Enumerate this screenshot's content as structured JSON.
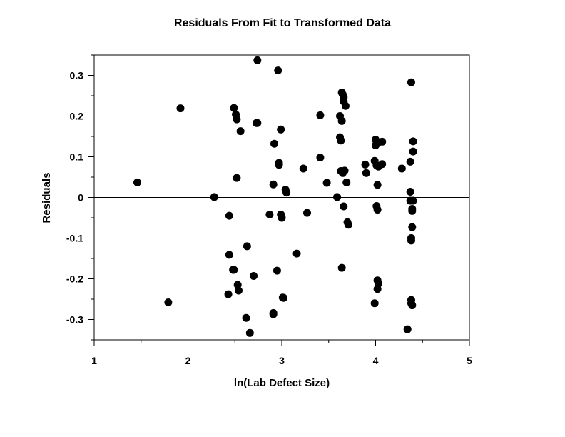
{
  "chart_data": {
    "type": "scatter",
    "title": "Residuals From Fit to Transformed Data",
    "xlabel": "ln(Lab Defect Size)",
    "ylabel": "Residuals",
    "xlim": [
      1,
      5
    ],
    "ylim": [
      -0.35,
      0.35
    ],
    "xticks": [
      1,
      2,
      3,
      4,
      5
    ],
    "xtick_labels": [
      "1",
      "2",
      "3",
      "4",
      "5"
    ],
    "yticks": [
      -0.3,
      -0.2,
      -0.1,
      0,
      0.1,
      0.2,
      0.3
    ],
    "ytick_labels": [
      "-0.3",
      "-0.2",
      "-0.1",
      "0",
      "0.1",
      "0.2",
      "0.3"
    ],
    "reference_line_y": 0,
    "grid": false,
    "marker_color": "#000000",
    "series": [
      {
        "points": [
          [
            1.46,
            0.037
          ],
          [
            1.79,
            -0.258
          ],
          [
            1.92,
            0.219
          ],
          [
            2.28,
            0.001
          ],
          [
            2.43,
            -0.238
          ],
          [
            2.44,
            -0.045
          ],
          [
            2.44,
            -0.141
          ],
          [
            2.48,
            -0.178
          ],
          [
            2.49,
            -0.178
          ],
          [
            2.49,
            0.22
          ],
          [
            2.51,
            0.204
          ],
          [
            2.52,
            0.192
          ],
          [
            2.52,
            0.048
          ],
          [
            2.53,
            -0.215
          ],
          [
            2.54,
            -0.229
          ],
          [
            2.56,
            0.163
          ],
          [
            2.62,
            -0.296
          ],
          [
            2.63,
            -0.12
          ],
          [
            2.66,
            -0.333
          ],
          [
            2.7,
            -0.193
          ],
          [
            2.73,
            0.183
          ],
          [
            2.74,
            0.183
          ],
          [
            2.74,
            0.337
          ],
          [
            2.87,
            -0.042
          ],
          [
            2.91,
            -0.284
          ],
          [
            2.91,
            -0.287
          ],
          [
            2.91,
            0.032
          ],
          [
            2.92,
            0.132
          ],
          [
            2.95,
            -0.18
          ],
          [
            2.96,
            0.312
          ],
          [
            2.97,
            0.085
          ],
          [
            2.97,
            0.08
          ],
          [
            2.99,
            -0.042
          ],
          [
            2.99,
            0.167
          ],
          [
            3.0,
            -0.05
          ],
          [
            3.01,
            -0.246
          ],
          [
            3.02,
            -0.247
          ],
          [
            3.04,
            0.019
          ],
          [
            3.05,
            0.012
          ],
          [
            3.16,
            -0.138
          ],
          [
            3.23,
            0.071
          ],
          [
            3.27,
            -0.038
          ],
          [
            3.41,
            0.202
          ],
          [
            3.41,
            0.098
          ],
          [
            3.48,
            0.036
          ],
          [
            3.59,
            0.001
          ],
          [
            3.62,
            0.2
          ],
          [
            3.62,
            0.148
          ],
          [
            3.63,
            0.065
          ],
          [
            3.63,
            0.14
          ],
          [
            3.64,
            0.188
          ],
          [
            3.64,
            0.258
          ],
          [
            3.64,
            -0.173
          ],
          [
            3.65,
            0.253
          ],
          [
            3.65,
            0.06
          ],
          [
            3.66,
            0.246
          ],
          [
            3.66,
            0.236
          ],
          [
            3.66,
            -0.022
          ],
          [
            3.67,
            0.066
          ],
          [
            3.68,
            0.225
          ],
          [
            3.69,
            0.037
          ],
          [
            3.7,
            -0.061
          ],
          [
            3.71,
            -0.067
          ],
          [
            3.89,
            0.081
          ],
          [
            3.9,
            0.06
          ],
          [
            3.99,
            0.09
          ],
          [
            3.99,
            -0.26
          ],
          [
            4.0,
            0.142
          ],
          [
            4.0,
            0.128
          ],
          [
            4.01,
            0.079
          ],
          [
            4.01,
            -0.021
          ],
          [
            4.02,
            0.031
          ],
          [
            4.02,
            0.133
          ],
          [
            4.02,
            -0.03
          ],
          [
            4.02,
            -0.204
          ],
          [
            4.02,
            -0.225
          ],
          [
            4.03,
            -0.212
          ],
          [
            4.03,
            0.076
          ],
          [
            4.07,
            0.137
          ],
          [
            4.07,
            0.082
          ],
          [
            4.28,
            0.071
          ],
          [
            4.34,
            -0.324
          ],
          [
            4.37,
            0.088
          ],
          [
            4.37,
            -0.008
          ],
          [
            4.37,
            0.014
          ],
          [
            4.38,
            0.283
          ],
          [
            4.38,
            -0.1
          ],
          [
            4.38,
            -0.106
          ],
          [
            4.38,
            -0.252
          ],
          [
            4.38,
            -0.26
          ],
          [
            4.39,
            -0.073
          ],
          [
            4.39,
            -0.033
          ],
          [
            4.39,
            -0.028
          ],
          [
            4.39,
            -0.265
          ],
          [
            4.4,
            0.138
          ],
          [
            4.4,
            0.113
          ],
          [
            4.4,
            -0.008
          ]
        ]
      }
    ]
  }
}
